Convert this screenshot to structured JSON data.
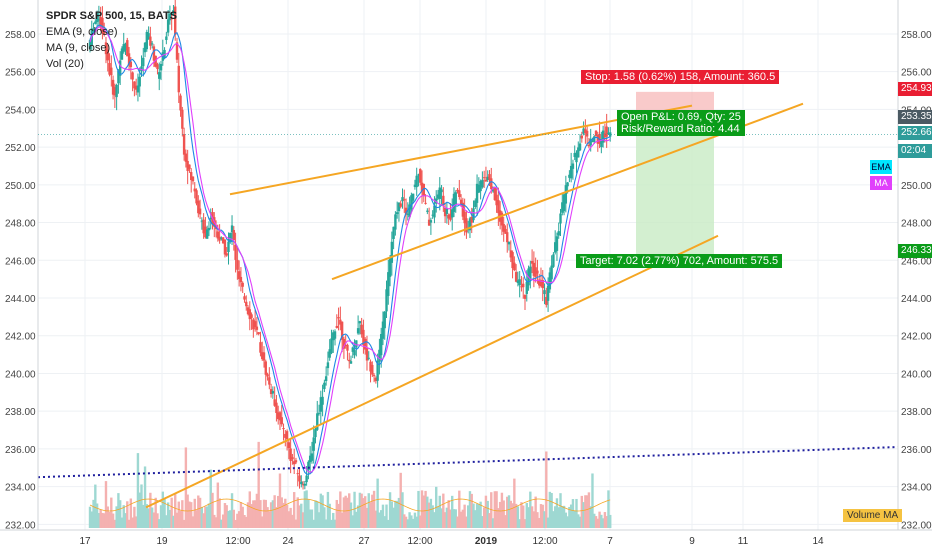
{
  "legend": {
    "symbol": "SPDR S&P 500, 15, BATS",
    "ema": "EMA (9, close)",
    "ma": "MA (9, close)",
    "vol": "Vol (20)"
  },
  "price_axis": {
    "ticks": [
      "258.00",
      "256.00",
      "254.00",
      "252.00",
      "250.00",
      "248.00",
      "246.00",
      "244.00",
      "242.00",
      "240.00",
      "238.00",
      "236.00",
      "234.00",
      "232.00"
    ],
    "tags": {
      "stop_price": "254.93",
      "high_price": "253.35",
      "last_price": "252.66",
      "countdown": "02:04",
      "target_price": "246.33"
    }
  },
  "time_axis": {
    "ticks": [
      "17",
      "19",
      "12:00",
      "24",
      "27",
      "12:00",
      "2019",
      "12:00",
      "7",
      "9",
      "11",
      "14"
    ]
  },
  "position": {
    "stop": "Stop: 1.58 (0.62%) 158, Amount: 360.5",
    "open": "Open P&L: 0.69, Qty: 25",
    "ratio": "Risk/Reward Ratio: 4.44",
    "target": "Target: 7.02 (2.77%) 702, Amount: 575.5"
  },
  "indicators": {
    "ema_badge": "EMA",
    "ma_badge": "MA",
    "volume_ma": "Volume MA"
  },
  "colors": {
    "up": "#26a69a",
    "down": "#ef5350",
    "trendline": "#f5a623",
    "dotted": "#1f1f9e",
    "ema": "#1e88e5",
    "ma": "#e040fb",
    "stop_zone": "#f7b4b4",
    "target_zone": "#c8ebc4",
    "tag_red": "#e91e32",
    "tag_green": "#0a9c19",
    "tag_teal": "#2e9c9a",
    "tag_dark": "#4b5a63"
  },
  "chart_data": {
    "type": "candlestick",
    "title": "SPDR S&P 500, 15, BATS",
    "ylim": [
      231.7,
      259.8
    ],
    "price_ticks": [
      258,
      256,
      254,
      252,
      250,
      248,
      246,
      244,
      242,
      240,
      238,
      236,
      234,
      232
    ],
    "x_ticks": [
      "17",
      "19",
      "12:00",
      "24",
      "27",
      "12:00",
      "2019",
      "12:00",
      "7",
      "9",
      "11",
      "14"
    ],
    "close_path": [
      257.2,
      258.5,
      259.0,
      257.8,
      256.0,
      254.6,
      256.8,
      257.5,
      256.1,
      254.8,
      256.2,
      258.0,
      257.3,
      255.9,
      256.8,
      258.6,
      259.2,
      255.0,
      251.9,
      250.6,
      249.8,
      248.2,
      247.4,
      248.3,
      247.6,
      247.0,
      246.4,
      247.8,
      245.3,
      244.3,
      243.4,
      242.6,
      241.8,
      240.5,
      239.4,
      238.5,
      237.4,
      236.8,
      235.6,
      235.0,
      234.1,
      234.6,
      236.0,
      237.8,
      239.0,
      240.6,
      242.1,
      243.0,
      241.6,
      240.6,
      241.5,
      242.8,
      241.1,
      240.4,
      239.8,
      241.8,
      244.3,
      247.0,
      248.8,
      249.2,
      248.4,
      249.6,
      250.8,
      249.3,
      248.0,
      248.8,
      249.9,
      248.6,
      248.3,
      249.7,
      249.0,
      247.6,
      248.2,
      249.8,
      250.2,
      250.6,
      249.6,
      248.7,
      247.5,
      246.8,
      245.2,
      244.8,
      244.2,
      245.8,
      245.2,
      244.7,
      243.9,
      245.9,
      247.2,
      248.8,
      250.3,
      251.2,
      252.0,
      253.0,
      252.1,
      252.6,
      252.3,
      252.8,
      252.66
    ],
    "price_levels": {
      "stop": 254.93,
      "high": 253.35,
      "last": 252.66,
      "target": 246.33
    },
    "annotations": [
      "Stop: 1.58 (0.62%) 158, Amount: 360.5",
      "Open P&L: 0.69, Qty: 25",
      "Risk/Reward Ratio: 4.44",
      "Target: 7.02 (2.77%) 702, Amount: 575.5"
    ],
    "indicators": [
      "EMA (9, close)",
      "MA (9, close)",
      "Vol (20)",
      "Volume MA"
    ]
  }
}
